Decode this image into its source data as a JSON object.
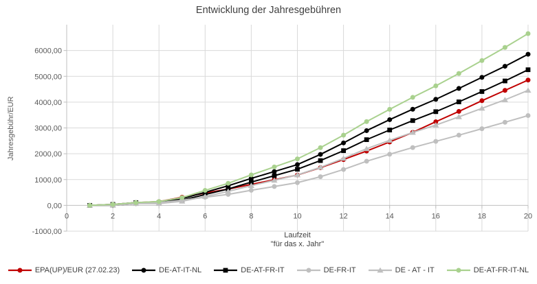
{
  "chart_data": {
    "type": "line",
    "title": "Entwicklung der Jahresgebühren",
    "ylabel": "Jahresgebühr/EUR",
    "xlabel_line1": "Laufzeit",
    "xlabel_line2": "\"für das x. Jahr\"",
    "x": [
      1,
      2,
      3,
      4,
      5,
      6,
      7,
      8,
      9,
      10,
      11,
      12,
      13,
      14,
      15,
      16,
      17,
      18,
      19,
      20
    ],
    "series": [
      {
        "name": "EPA(UP)/EUR (27.02.23)",
        "color": "#C00000",
        "marker": "circle",
        "values": [
          0,
          35,
          105,
          145,
          315,
          475,
          630,
          815,
          990,
          1175,
          1460,
          1775,
          2105,
          2455,
          2830,
          3240,
          3640,
          4055,
          4455,
          4855
        ]
      },
      {
        "name": "DE-AT-IT-NL",
        "color": "#000000",
        "marker": "circle",
        "values": [
          0,
          0,
          70,
          110,
          260,
          505,
          760,
          1045,
          1310,
          1580,
          1975,
          2420,
          2895,
          3320,
          3725,
          4110,
          4530,
          4960,
          5390,
          5855
        ]
      },
      {
        "name": "DE-AT-FR-IT",
        "color": "#000000",
        "marker": "square",
        "values": [
          0,
          38,
          108,
          108,
          200,
          420,
          635,
          900,
          1150,
          1400,
          1735,
          2120,
          2545,
          2920,
          3285,
          3630,
          4010,
          4410,
          4820,
          5255
        ]
      },
      {
        "name": "DE-FR-IT",
        "color": "#BFBFBF",
        "marker": "circle",
        "values": [
          0,
          38,
          108,
          108,
          200,
          315,
          425,
          585,
          730,
          880,
          1110,
          1390,
          1710,
          1980,
          2240,
          2480,
          2720,
          2970,
          3220,
          3480
        ]
      },
      {
        "name": "DE - AT - IT",
        "color": "#BFBFBF",
        "marker": "triangle",
        "values": [
          0,
          0,
          70,
          70,
          160,
          345,
          540,
          765,
          970,
          1180,
          1475,
          1820,
          2195,
          2520,
          2825,
          3110,
          3430,
          3760,
          4090,
          4455
        ]
      },
      {
        "name": "DE-AT-FR-IT-NL",
        "color": "#A9D18E",
        "marker": "circle",
        "values": [
          0,
          38,
          108,
          148,
          300,
          580,
          855,
          1180,
          1490,
          1800,
          2235,
          2720,
          3245,
          3720,
          4185,
          4630,
          5110,
          5610,
          6120,
          6655
        ]
      }
    ],
    "xlim": [
      0,
      20
    ],
    "ylim": [
      -1000,
      7000
    ],
    "x_tick_labels": [
      "0",
      "2",
      "4",
      "6",
      "8",
      "10",
      "12",
      "14",
      "16",
      "18",
      "20"
    ],
    "y_tick_labels": [
      "-1000,00",
      "0,00",
      "1000,00",
      "2000,00",
      "3000,00",
      "4000,00",
      "5000,00",
      "6000,00"
    ],
    "grid": true,
    "legend_position": "bottom",
    "style": {
      "grid_color": "#D9D9D9",
      "axis_color": "#BFBFBF",
      "tick_label_color": "#595959",
      "title_color": "#404040",
      "background": "#FFFFFF"
    }
  }
}
